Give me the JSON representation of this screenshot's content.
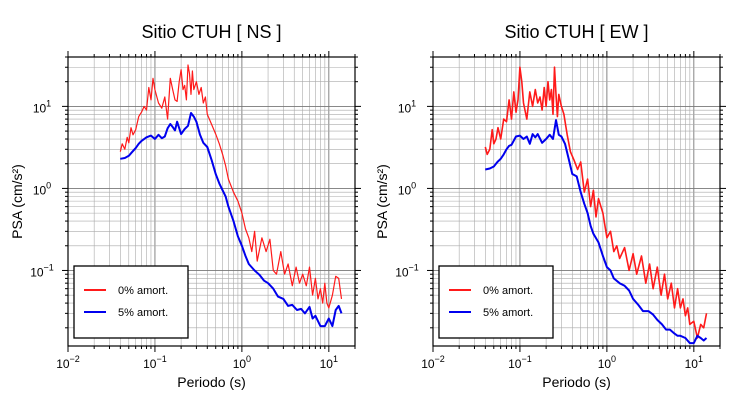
{
  "chart_data": [
    {
      "type": "line",
      "title": "Sitio CTUH [ NS ]",
      "xlabel": "Periodo (s)",
      "ylabel": "PSA (cm/s²)",
      "xscale": "log",
      "yscale": "log",
      "xlim": [
        0.01,
        20
      ],
      "ylim": [
        0.012,
        40
      ],
      "grid": true,
      "legend_position": "bottom-left",
      "xticks": [
        {
          "base": "10",
          "exp": "−2"
        },
        {
          "base": "10",
          "exp": "−1"
        },
        {
          "base": "10",
          "exp": "0"
        },
        {
          "base": "10",
          "exp": "1"
        }
      ],
      "yticks": [
        {
          "base": "10",
          "exp": "−1"
        },
        {
          "base": "10",
          "exp": "0"
        },
        {
          "base": "10",
          "exp": "1"
        }
      ],
      "series": [
        {
          "name": "0% amort.",
          "color": "#ff1a1a",
          "width": 1.2,
          "x": [
            0.04,
            0.042,
            0.045,
            0.048,
            0.05,
            0.053,
            0.056,
            0.06,
            0.065,
            0.07,
            0.075,
            0.08,
            0.085,
            0.09,
            0.095,
            0.1,
            0.11,
            0.12,
            0.13,
            0.14,
            0.15,
            0.16,
            0.17,
            0.18,
            0.19,
            0.2,
            0.21,
            0.22,
            0.23,
            0.24,
            0.25,
            0.26,
            0.27,
            0.28,
            0.3,
            0.32,
            0.34,
            0.36,
            0.38,
            0.4,
            0.45,
            0.5,
            0.55,
            0.6,
            0.65,
            0.7,
            0.8,
            0.9,
            1.0,
            1.1,
            1.2,
            1.3,
            1.4,
            1.5,
            1.7,
            1.9,
            2.1,
            2.3,
            2.5,
            2.8,
            3.1,
            3.4,
            3.8,
            4.2,
            4.6,
            5.0,
            5.5,
            6.0,
            6.5,
            7.0,
            7.5,
            8.0,
            8.5,
            9.0,
            9.5,
            10.0,
            11.0,
            12.0,
            13.0,
            14.0
          ],
          "y": [
            2.8,
            3.5,
            3.0,
            4.2,
            3.6,
            5.5,
            4.5,
            5.2,
            7.5,
            8.5,
            10.0,
            9.0,
            17.0,
            12.0,
            22.0,
            16.0,
            11.0,
            9.5,
            13.0,
            7.0,
            22.0,
            16.0,
            12.0,
            11.5,
            20.0,
            28.0,
            16.0,
            18.0,
            12.0,
            32.0,
            25.0,
            14.0,
            27.0,
            16.0,
            20.0,
            14.0,
            17.0,
            11.0,
            13.0,
            8.0,
            6.0,
            4.6,
            3.5,
            2.6,
            1.9,
            1.3,
            0.9,
            0.7,
            0.5,
            0.32,
            0.25,
            0.17,
            0.3,
            0.13,
            0.25,
            0.17,
            0.24,
            0.1,
            0.09,
            0.17,
            0.09,
            0.12,
            0.065,
            0.11,
            0.07,
            0.09,
            0.065,
            0.11,
            0.05,
            0.08,
            0.045,
            0.06,
            0.04,
            0.07,
            0.04,
            0.035,
            0.05,
            0.085,
            0.08,
            0.045
          ]
        },
        {
          "name": "5% amort.",
          "color": "#0000ee",
          "width": 2,
          "x": [
            0.04,
            0.045,
            0.05,
            0.055,
            0.06,
            0.065,
            0.07,
            0.08,
            0.09,
            0.1,
            0.11,
            0.12,
            0.13,
            0.14,
            0.15,
            0.16,
            0.17,
            0.18,
            0.2,
            0.22,
            0.24,
            0.26,
            0.28,
            0.3,
            0.33,
            0.36,
            0.4,
            0.45,
            0.5,
            0.55,
            0.6,
            0.65,
            0.7,
            0.8,
            0.9,
            1.0,
            1.1,
            1.2,
            1.4,
            1.6,
            1.8,
            2.0,
            2.3,
            2.6,
            3.0,
            3.4,
            3.8,
            4.3,
            4.8,
            5.3,
            6.0,
            6.5,
            7.0,
            8.0,
            9.0,
            10.0,
            11.0,
            12.0,
            13.0,
            14.0
          ],
          "y": [
            2.3,
            2.35,
            2.5,
            2.8,
            3.1,
            3.5,
            3.8,
            4.2,
            4.4,
            4.0,
            4.5,
            4.1,
            4.3,
            5.4,
            6.1,
            5.6,
            5.1,
            6.5,
            4.6,
            5.3,
            5.8,
            8.3,
            7.5,
            6.5,
            4.5,
            3.6,
            3.2,
            2.2,
            1.5,
            1.15,
            0.95,
            0.8,
            0.6,
            0.4,
            0.26,
            0.2,
            0.15,
            0.12,
            0.1,
            0.088,
            0.075,
            0.07,
            0.06,
            0.048,
            0.045,
            0.037,
            0.038,
            0.033,
            0.034,
            0.03,
            0.036,
            0.026,
            0.028,
            0.021,
            0.021,
            0.026,
            0.021,
            0.033,
            0.037,
            0.03
          ]
        }
      ]
    },
    {
      "type": "line",
      "title": "Sitio CTUH [ EW ]",
      "xlabel": "Periodo (s)",
      "ylabel": "PSA (cm/s²)",
      "xscale": "log",
      "yscale": "log",
      "xlim": [
        0.01,
        20
      ],
      "ylim": [
        0.012,
        40
      ],
      "grid": true,
      "legend_position": "bottom-left",
      "xticks": [
        {
          "base": "10",
          "exp": "−2"
        },
        {
          "base": "10",
          "exp": "−1"
        },
        {
          "base": "10",
          "exp": "0"
        },
        {
          "base": "10",
          "exp": "1"
        }
      ],
      "yticks": [
        {
          "base": "10",
          "exp": "−1"
        },
        {
          "base": "10",
          "exp": "0"
        },
        {
          "base": "10",
          "exp": "1"
        }
      ],
      "series": [
        {
          "name": "0% amort.",
          "color": "#ff1a1a",
          "width": 1.6,
          "x": [
            0.04,
            0.042,
            0.045,
            0.048,
            0.05,
            0.053,
            0.056,
            0.06,
            0.065,
            0.07,
            0.075,
            0.08,
            0.085,
            0.09,
            0.095,
            0.1,
            0.105,
            0.11,
            0.12,
            0.13,
            0.14,
            0.15,
            0.16,
            0.17,
            0.18,
            0.19,
            0.2,
            0.21,
            0.22,
            0.23,
            0.24,
            0.25,
            0.26,
            0.27,
            0.28,
            0.3,
            0.32,
            0.35,
            0.38,
            0.42,
            0.46,
            0.5,
            0.55,
            0.6,
            0.65,
            0.7,
            0.75,
            0.8,
            0.9,
            1.0,
            1.1,
            1.2,
            1.3,
            1.4,
            1.6,
            1.8,
            2.0,
            2.2,
            2.5,
            2.8,
            3.1,
            3.4,
            3.8,
            4.2,
            4.6,
            5.0,
            5.5,
            6.0,
            6.5,
            7.0,
            7.5,
            8.0,
            8.5,
            9.0,
            10.0,
            11.0,
            12.0,
            13.0,
            14.0
          ],
          "y": [
            3.2,
            2.6,
            3.0,
            5.2,
            3.5,
            4.0,
            5.5,
            4.0,
            7.0,
            6.5,
            12.0,
            7.0,
            15.0,
            8.5,
            12.0,
            30.0,
            20.0,
            11.0,
            7.0,
            15.0,
            10.0,
            16.0,
            11.0,
            13.0,
            9.0,
            17.0,
            10.0,
            20.0,
            12.0,
            16.0,
            8.0,
            30.0,
            14.0,
            7.5,
            14.0,
            10.0,
            8.0,
            4.5,
            2.8,
            2.2,
            1.7,
            2.1,
            0.9,
            1.3,
            0.6,
            0.95,
            0.45,
            0.75,
            0.5,
            0.25,
            0.3,
            0.17,
            0.2,
            0.14,
            0.19,
            0.1,
            0.16,
            0.09,
            0.15,
            0.07,
            0.12,
            0.06,
            0.11,
            0.05,
            0.09,
            0.045,
            0.07,
            0.035,
            0.06,
            0.035,
            0.045,
            0.028,
            0.035,
            0.022,
            0.024,
            0.015,
            0.022,
            0.02,
            0.03
          ]
        },
        {
          "name": "5% amort.",
          "color": "#0000ee",
          "width": 2,
          "x": [
            0.04,
            0.045,
            0.05,
            0.055,
            0.06,
            0.065,
            0.07,
            0.075,
            0.08,
            0.09,
            0.1,
            0.11,
            0.12,
            0.13,
            0.14,
            0.15,
            0.16,
            0.18,
            0.2,
            0.22,
            0.24,
            0.26,
            0.28,
            0.3,
            0.33,
            0.36,
            0.4,
            0.45,
            0.5,
            0.55,
            0.6,
            0.65,
            0.7,
            0.8,
            0.9,
            1.0,
            1.1,
            1.2,
            1.4,
            1.6,
            1.8,
            2.0,
            2.3,
            2.6,
            3.0,
            3.4,
            3.8,
            4.3,
            4.8,
            5.3,
            6.0,
            6.5,
            7.0,
            8.0,
            9.0,
            10.0,
            11.0,
            12.0,
            13.0,
            14.0
          ],
          "y": [
            1.7,
            1.75,
            1.85,
            2.1,
            2.3,
            2.6,
            3.0,
            3.3,
            3.4,
            4.3,
            4.4,
            4.0,
            4.3,
            3.5,
            4.6,
            4.2,
            4.6,
            3.6,
            4.0,
            4.5,
            4.0,
            6.8,
            4.5,
            4.3,
            3.5,
            2.4,
            1.5,
            1.4,
            0.9,
            0.65,
            0.5,
            0.35,
            0.28,
            0.22,
            0.15,
            0.11,
            0.1,
            0.08,
            0.07,
            0.065,
            0.057,
            0.045,
            0.038,
            0.032,
            0.032,
            0.029,
            0.025,
            0.022,
            0.019,
            0.019,
            0.017,
            0.016,
            0.016,
            0.015,
            0.013,
            0.013,
            0.016,
            0.015,
            0.014,
            0.015
          ]
        }
      ]
    }
  ]
}
